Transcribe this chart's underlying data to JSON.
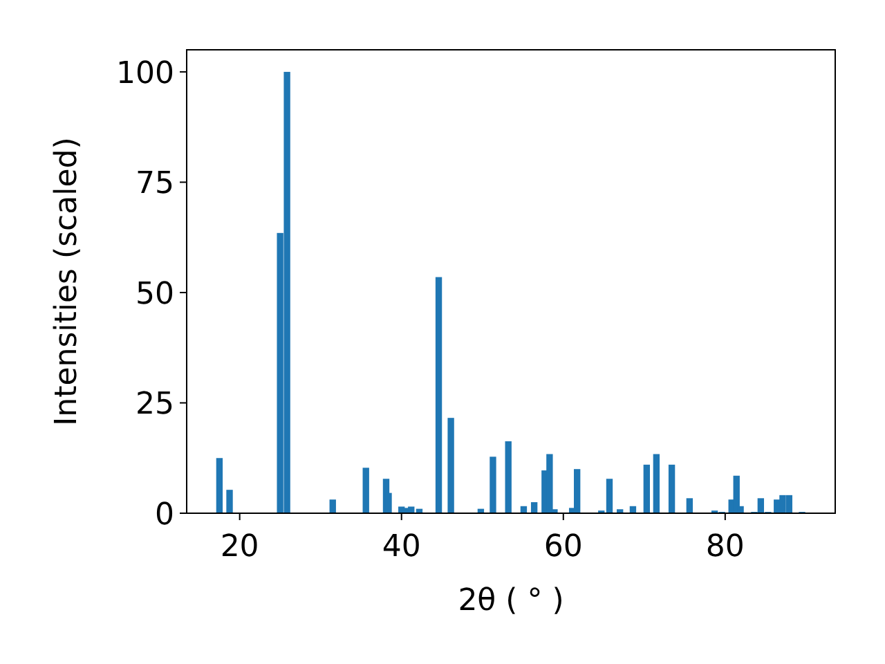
{
  "chart_data": {
    "type": "bar",
    "xlabel": "2θ ( ° )",
    "ylabel": "Intensities (scaled)",
    "x": [
      17.5,
      18.75,
      25.0,
      25.85,
      31.5,
      35.6,
      38.1,
      38.4,
      40.0,
      40.5,
      41.2,
      42.2,
      44.6,
      46.1,
      49.8,
      51.3,
      53.2,
      55.1,
      56.4,
      57.7,
      58.3,
      58.9,
      61.1,
      61.7,
      64.7,
      65.7,
      67.0,
      68.6,
      70.3,
      71.5,
      73.4,
      75.6,
      78.7,
      79.6,
      80.8,
      81.4,
      81.9,
      83.6,
      84.4,
      85.3,
      86.4,
      87.1,
      87.9,
      89.5
    ],
    "values": [
      12.5,
      5.3,
      63.5,
      100,
      3.1,
      10.3,
      7.8,
      4.6,
      1.5,
      1.2,
      1.5,
      1.0,
      53.5,
      21.6,
      1.0,
      12.8,
      16.3,
      1.6,
      2.5,
      9.7,
      13.4,
      0.9,
      1.2,
      10.0,
      0.6,
      7.8,
      0.9,
      1.6,
      11.0,
      13.4,
      11.0,
      3.4,
      0.6,
      0.3,
      3.1,
      8.5,
      1.6,
      0.3,
      3.4,
      0.3,
      3.1,
      4.1,
      4.1,
      0.3
    ],
    "color": "#1f77b4",
    "xlim": [
      13.45,
      93.6
    ],
    "ylim": [
      0,
      105
    ],
    "xticks": [
      20,
      40,
      60,
      80
    ],
    "yticks": [
      0,
      25,
      50,
      75,
      100
    ]
  }
}
